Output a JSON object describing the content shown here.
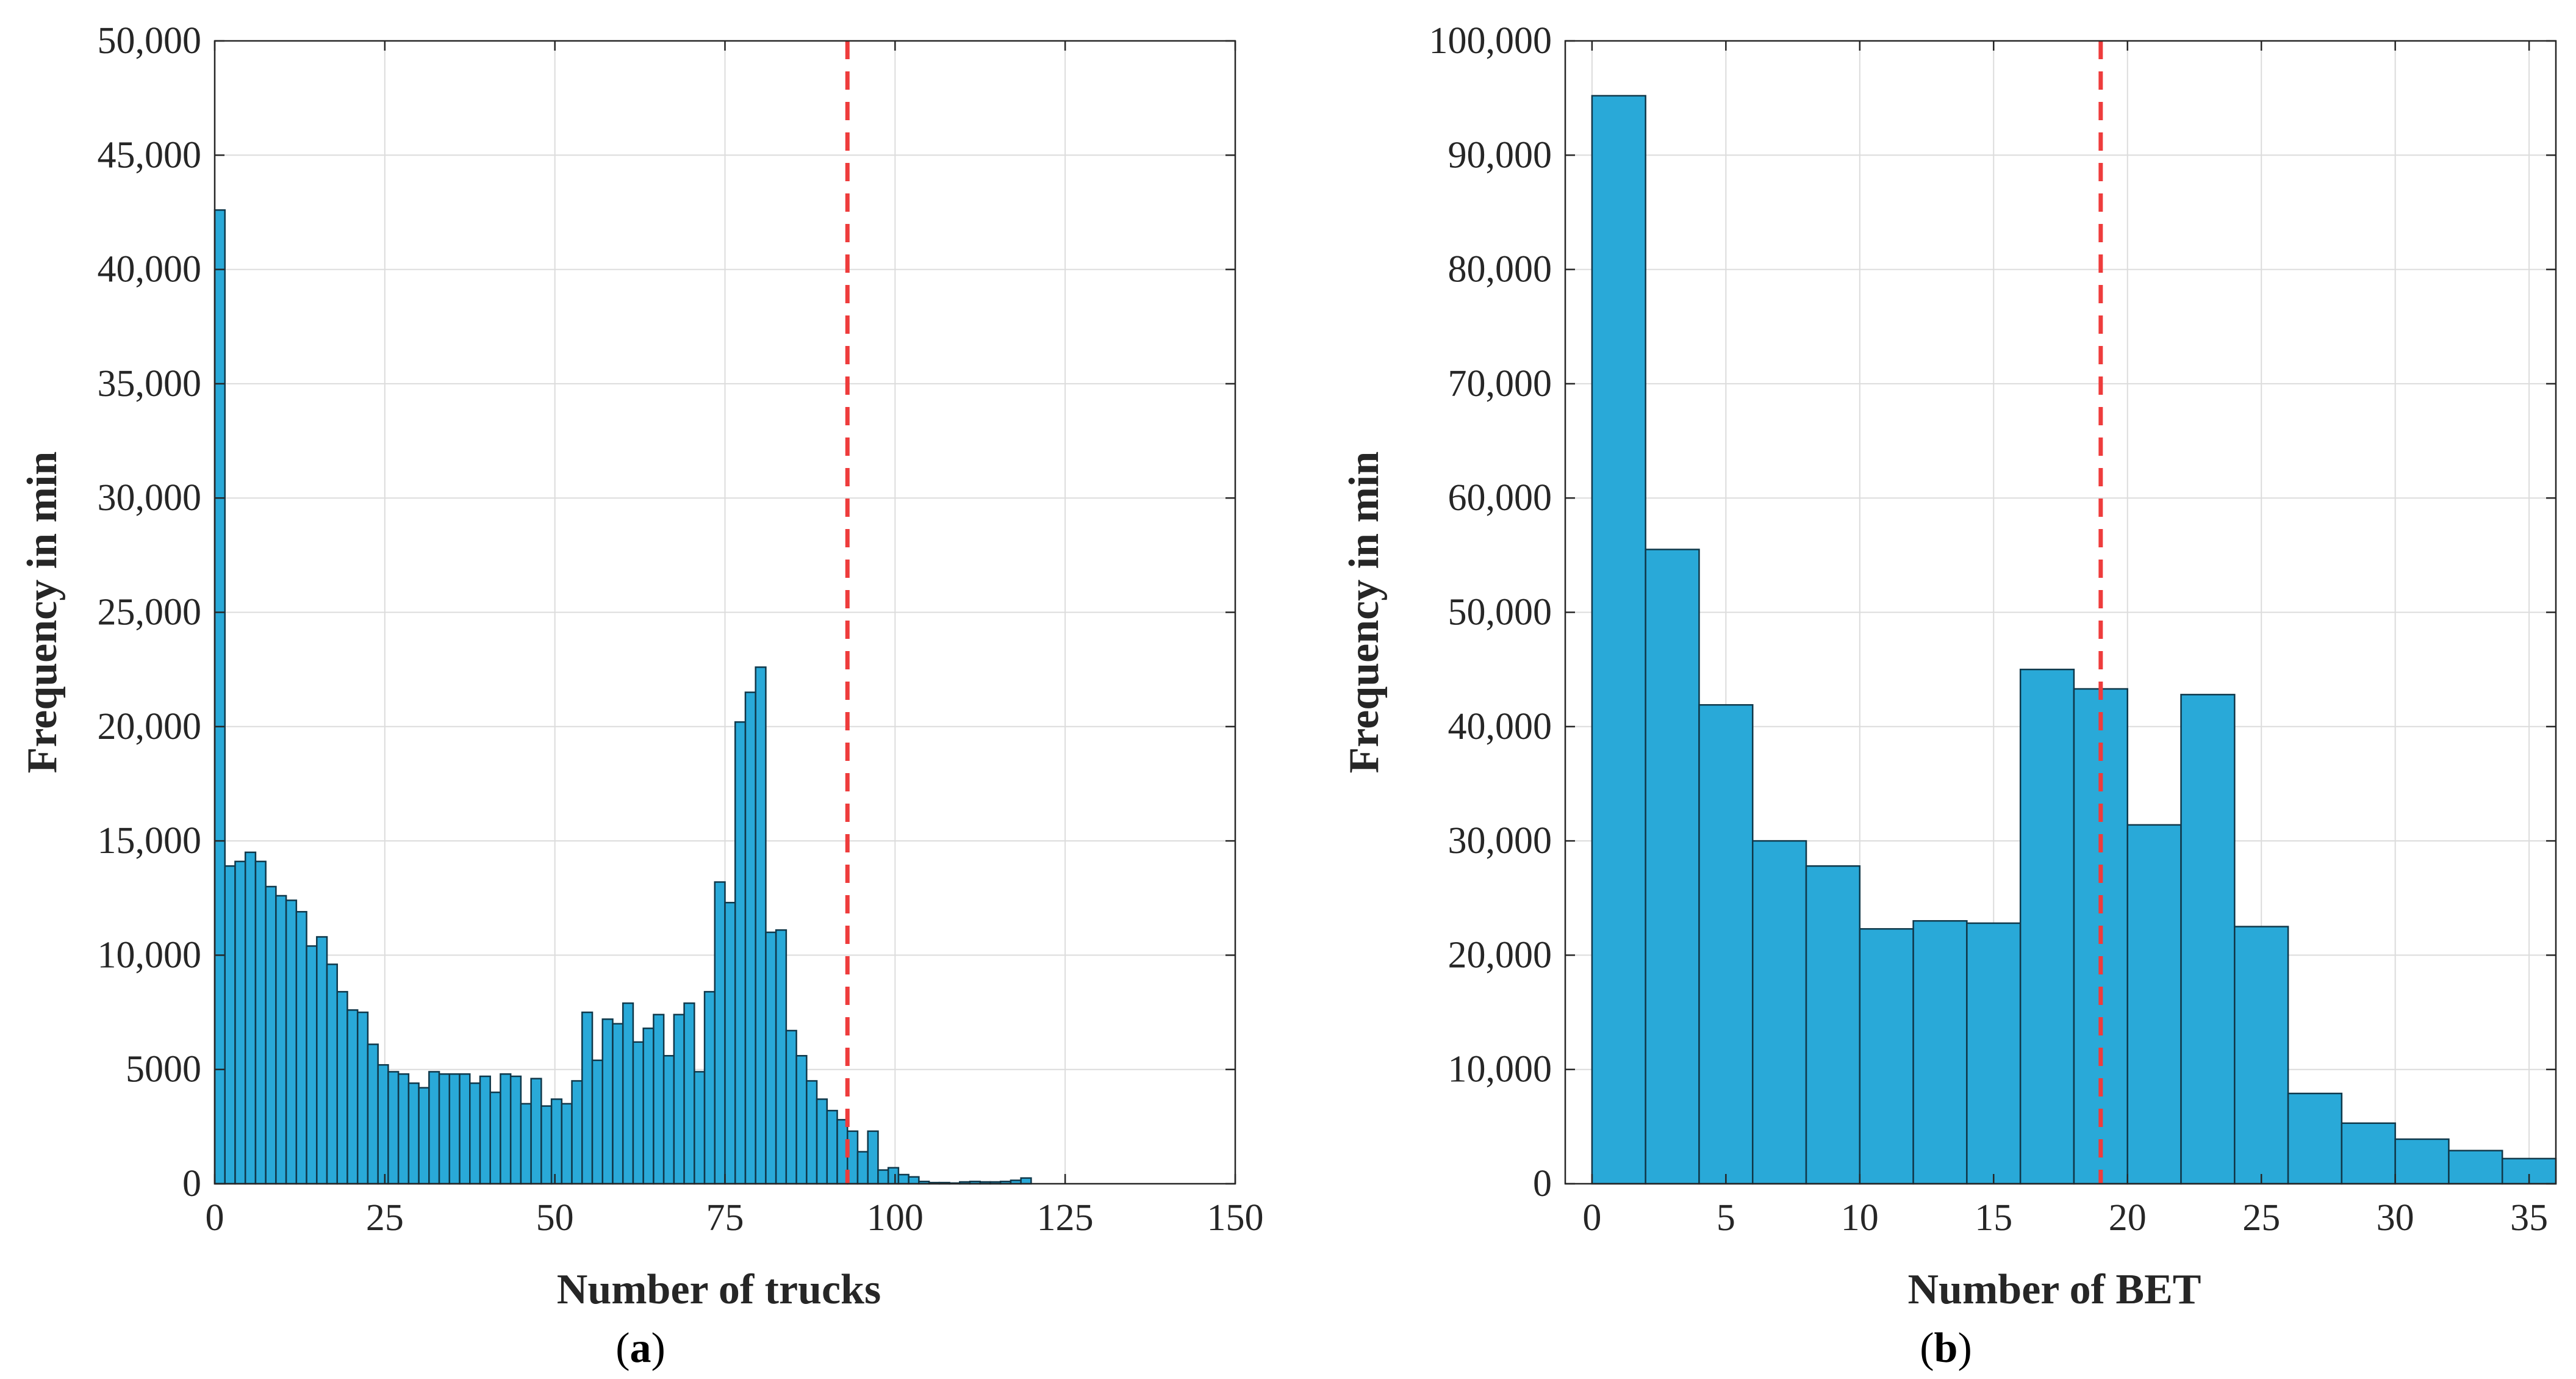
{
  "chart_data": [
    {
      "type": "bar",
      "subtype": "histogram",
      "panel_label": "a",
      "xlabel": "Number of trucks",
      "ylabel": "Frequency in min",
      "xlim": [
        0,
        150
      ],
      "ylim": [
        0,
        50000
      ],
      "xticks": [
        0,
        25,
        50,
        75,
        100,
        125,
        150
      ],
      "xtick_labels": [
        "0",
        "25",
        "50",
        "75",
        "100",
        "125",
        "150"
      ],
      "yticks": [
        0,
        5000,
        10000,
        15000,
        20000,
        25000,
        30000,
        35000,
        40000,
        45000,
        50000
      ],
      "ytick_labels": [
        "0",
        "5000",
        "10,000",
        "15,000",
        "20,000",
        "25,000",
        "30,000",
        "35,000",
        "40,000",
        "45,000",
        "50,000"
      ],
      "grid": true,
      "bin_start": 0,
      "bin_width": 1.5,
      "values": [
        42600,
        13900,
        14100,
        14500,
        14100,
        13000,
        12600,
        12400,
        11900,
        10400,
        10800,
        9600,
        8400,
        7600,
        7500,
        6100,
        5200,
        4900,
        4800,
        4400,
        4200,
        4900,
        4800,
        4800,
        4800,
        4400,
        4700,
        4000,
        4800,
        4700,
        3500,
        4600,
        3400,
        3700,
        3500,
        4500,
        7500,
        5400,
        7200,
        7000,
        7900,
        6200,
        6800,
        7400,
        5600,
        7400,
        7900,
        4900,
        8400,
        13200,
        12300,
        20200,
        21500,
        22600,
        11000,
        11100,
        6700,
        5600,
        4500,
        3700,
        3200,
        2800,
        2300,
        1400,
        2300,
        600,
        700,
        400,
        300,
        100,
        50,
        50,
        30,
        80,
        100,
        80,
        80,
        100,
        150,
        250
      ],
      "reference_line_x": 93,
      "reference_line_color": "#ee3c3c",
      "bar_color": "#29a9d8"
    },
    {
      "type": "bar",
      "subtype": "histogram",
      "panel_label": "b",
      "xlabel": "Number of BET",
      "ylabel": "Frequency in min",
      "xlim": [
        -1,
        36
      ],
      "ylim": [
        0,
        100000
      ],
      "xticks": [
        0,
        5,
        10,
        15,
        20,
        25,
        30,
        35
      ],
      "xtick_labels": [
        "0",
        "5",
        "10",
        "15",
        "20",
        "25",
        "30",
        "35"
      ],
      "yticks": [
        0,
        10000,
        20000,
        30000,
        40000,
        50000,
        60000,
        70000,
        80000,
        90000,
        100000
      ],
      "ytick_labels": [
        "0",
        "10,000",
        "20,000",
        "30,000",
        "40,000",
        "50,000",
        "60,000",
        "70,000",
        "80,000",
        "90,000",
        "100,000"
      ],
      "grid": true,
      "bin_start": 0,
      "bin_width": 2,
      "values": [
        95200,
        55500,
        41900,
        30000,
        27800,
        22300,
        23000,
        22800,
        45000,
        43300,
        31400,
        42800,
        22500,
        7900,
        5300,
        3900,
        2900,
        2200
      ],
      "reference_line_x": 19,
      "reference_line_color": "#ee3c3c",
      "bar_color": "#29a9d8"
    }
  ],
  "captions": [
    {
      "open": "(",
      "letter": "a",
      "close": ")"
    },
    {
      "open": "(",
      "letter": "b",
      "close": ")"
    }
  ]
}
